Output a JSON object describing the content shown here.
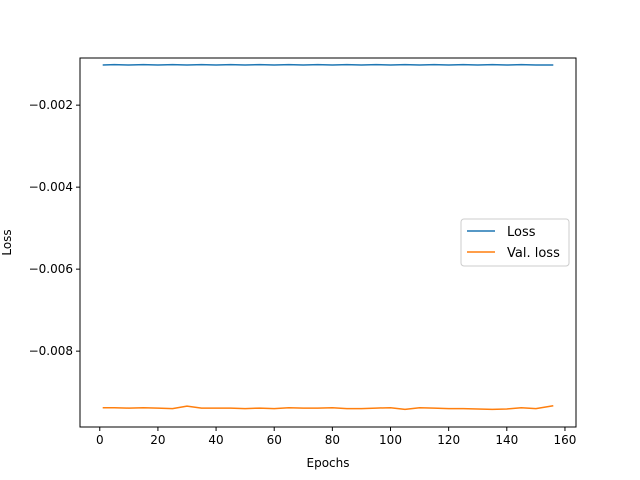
{
  "chart_data": {
    "type": "line",
    "title": "",
    "xlabel": "Epochs",
    "ylabel": "Loss",
    "xlim": [
      -6.8,
      163.8
    ],
    "ylim": [
      -0.00985,
      -0.00085
    ],
    "xticks": [
      0,
      20,
      40,
      60,
      80,
      100,
      120,
      140,
      160
    ],
    "xtick_labels": [
      "0",
      "20",
      "40",
      "60",
      "80",
      "100",
      "120",
      "140",
      "160"
    ],
    "yticks": [
      -0.008,
      -0.006,
      -0.004,
      -0.002
    ],
    "ytick_labels": [
      "−0.008",
      "−0.006",
      "−0.004",
      "−0.002"
    ],
    "grid": false,
    "legend_position": "center-right",
    "x": [
      1,
      5,
      10,
      15,
      20,
      25,
      30,
      35,
      40,
      45,
      50,
      55,
      60,
      65,
      70,
      75,
      80,
      85,
      90,
      95,
      100,
      105,
      110,
      115,
      120,
      125,
      130,
      135,
      140,
      145,
      150,
      156
    ],
    "series": [
      {
        "name": "Loss",
        "color": "#1f77b4",
        "values": [
          -0.00102,
          -0.00101,
          -0.00102,
          -0.00101,
          -0.00102,
          -0.00101,
          -0.00102,
          -0.00101,
          -0.00102,
          -0.00101,
          -0.00102,
          -0.00101,
          -0.00102,
          -0.00101,
          -0.00102,
          -0.00101,
          -0.00102,
          -0.00101,
          -0.00102,
          -0.00101,
          -0.00102,
          -0.00101,
          -0.00102,
          -0.00101,
          -0.00102,
          -0.00101,
          -0.00102,
          -0.00101,
          -0.00102,
          -0.00101,
          -0.00102,
          -0.00102
        ]
      },
      {
        "name": "Val. loss",
        "color": "#ff7f0e",
        "values": [
          -0.00938,
          -0.00938,
          -0.00939,
          -0.00938,
          -0.00939,
          -0.0094,
          -0.00934,
          -0.00939,
          -0.00939,
          -0.00939,
          -0.0094,
          -0.00939,
          -0.0094,
          -0.00938,
          -0.00939,
          -0.00939,
          -0.00938,
          -0.0094,
          -0.0094,
          -0.00939,
          -0.00938,
          -0.00942,
          -0.00938,
          -0.00939,
          -0.0094,
          -0.0094,
          -0.00941,
          -0.00942,
          -0.00941,
          -0.00938,
          -0.0094,
          -0.00933
        ]
      }
    ]
  }
}
